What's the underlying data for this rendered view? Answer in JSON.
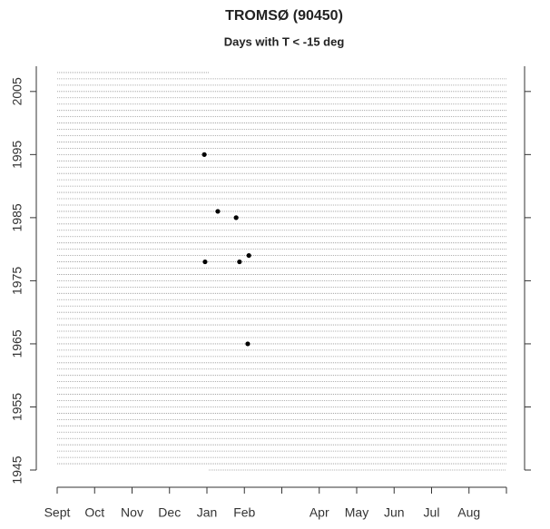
{
  "chart_data": {
    "type": "scatter",
    "title": "TROMSØ (90450)",
    "subtitle": "Days with T < -15 deg",
    "x": [
      3.93,
      4.29,
      4.78,
      3.95,
      4.87,
      5.12,
      5.09
    ],
    "values": [
      1995,
      1986,
      1985,
      1978,
      1978,
      1979,
      1965
    ],
    "color": "#000000",
    "record": {
      "start_year": 1945,
      "start_x": 4.05,
      "end_year": 2008,
      "end_x": 4.05
    },
    "xlim": [
      0,
      12
    ],
    "xticks": [
      {
        "value": 0,
        "label": "Sept"
      },
      {
        "value": 1,
        "label": "Oct"
      },
      {
        "value": 2,
        "label": "Nov"
      },
      {
        "value": 3,
        "label": "Dec"
      },
      {
        "value": 4,
        "label": "Jan"
      },
      {
        "value": 5,
        "label": "Feb"
      },
      {
        "value": 6,
        "label": null
      },
      {
        "value": 7,
        "label": "Apr"
      },
      {
        "value": 8,
        "label": "May"
      },
      {
        "value": 9,
        "label": "Jun"
      },
      {
        "value": 10,
        "label": "Jul"
      },
      {
        "value": 11,
        "label": "Aug"
      },
      {
        "value": 12,
        "label": null
      }
    ],
    "ylim": [
      1945,
      2009
    ],
    "yticks": [
      1945,
      1955,
      1965,
      1975,
      1985,
      1995,
      2005
    ]
  }
}
